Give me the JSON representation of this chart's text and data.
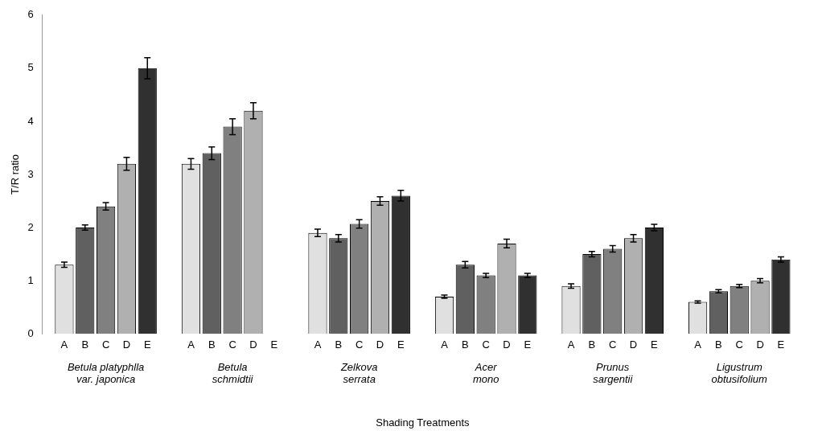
{
  "chart_data": {
    "type": "bar",
    "xlabel": "Shading Treatments",
    "ylabel": "T/R ratio",
    "categories": [
      "Betula platyphlla var. japonica",
      "Betula schmidtii",
      "Zelkova serrata",
      "Acer mono",
      "Prunus sargentii",
      "Ligustrum obtusifolium"
    ],
    "series": [
      {
        "name": "A",
        "color": "#e0e0e0",
        "values": [
          1.3,
          3.2,
          1.9,
          0.7,
          0.9,
          0.6
        ],
        "errors": [
          0.05,
          0.1,
          0.07,
          0.03,
          0.04,
          0.02
        ]
      },
      {
        "name": "B",
        "color": "#606060",
        "values": [
          2.0,
          3.4,
          1.8,
          1.3,
          1.5,
          0.8
        ],
        "errors": [
          0.05,
          0.12,
          0.07,
          0.06,
          0.05,
          0.03
        ]
      },
      {
        "name": "C",
        "color": "#808080",
        "values": [
          2.4,
          3.9,
          2.07,
          1.1,
          1.6,
          0.9
        ],
        "errors": [
          0.07,
          0.15,
          0.08,
          0.04,
          0.06,
          0.03
        ]
      },
      {
        "name": "D",
        "color": "#b0b0b0",
        "values": [
          3.2,
          4.2,
          2.5,
          1.7,
          1.8,
          1.0
        ],
        "errors": [
          0.12,
          0.15,
          0.08,
          0.08,
          0.07,
          0.04
        ]
      },
      {
        "name": "E",
        "color": "#303030",
        "values": [
          5.0,
          0,
          2.6,
          1.1,
          2.0,
          1.4
        ],
        "errors": [
          0.2,
          null,
          0.1,
          0.04,
          0.06,
          0.05
        ]
      }
    ],
    "ylim": [
      0,
      6
    ],
    "yticks": [
      0,
      1,
      2,
      3,
      4,
      5,
      6
    ],
    "grid": false,
    "legend": false
  }
}
